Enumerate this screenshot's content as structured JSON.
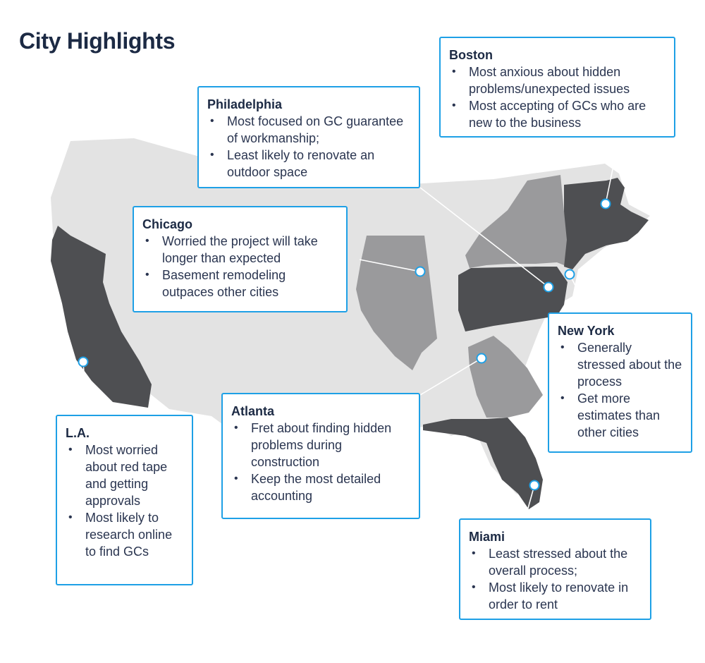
{
  "title": "City Highlights",
  "colors": {
    "accent": "#1ea0e6",
    "title": "#1c2a44",
    "map_base": "#e3e3e3",
    "state_dark": "#4e4f52",
    "state_light": "#9a9a9c"
  },
  "cards": {
    "boston": {
      "city": "Boston",
      "items": [
        "Most anxious about hidden problems/unexpected issues",
        "Most accepting of GCs who are new to the business"
      ]
    },
    "philadelphia": {
      "city": "Philadelphia",
      "items": [
        "Most focused on GC guarantee of workmanship;",
        "Least likely to renovate an outdoor space"
      ]
    },
    "chicago": {
      "city": "Chicago",
      "items": [
        "Worried the project will take longer than expected",
        "Basement remodeling outpaces other cities"
      ]
    },
    "new_york": {
      "city": "New York",
      "items": [
        "Generally stressed about the process",
        "Get more estimates than other cities"
      ]
    },
    "atlanta": {
      "city": "Atlanta",
      "items": [
        "Fret about finding hidden problems during construction",
        "Keep the most detailed accounting"
      ]
    },
    "la": {
      "city": "L.A.",
      "items": [
        "Most worried about red tape and getting approvals",
        "Most likely to research online to find GCs"
      ]
    },
    "miami": {
      "city": "Miami",
      "items": [
        "Least stressed about the overall process;",
        "Most likely to renovate in order to rent"
      ]
    }
  }
}
